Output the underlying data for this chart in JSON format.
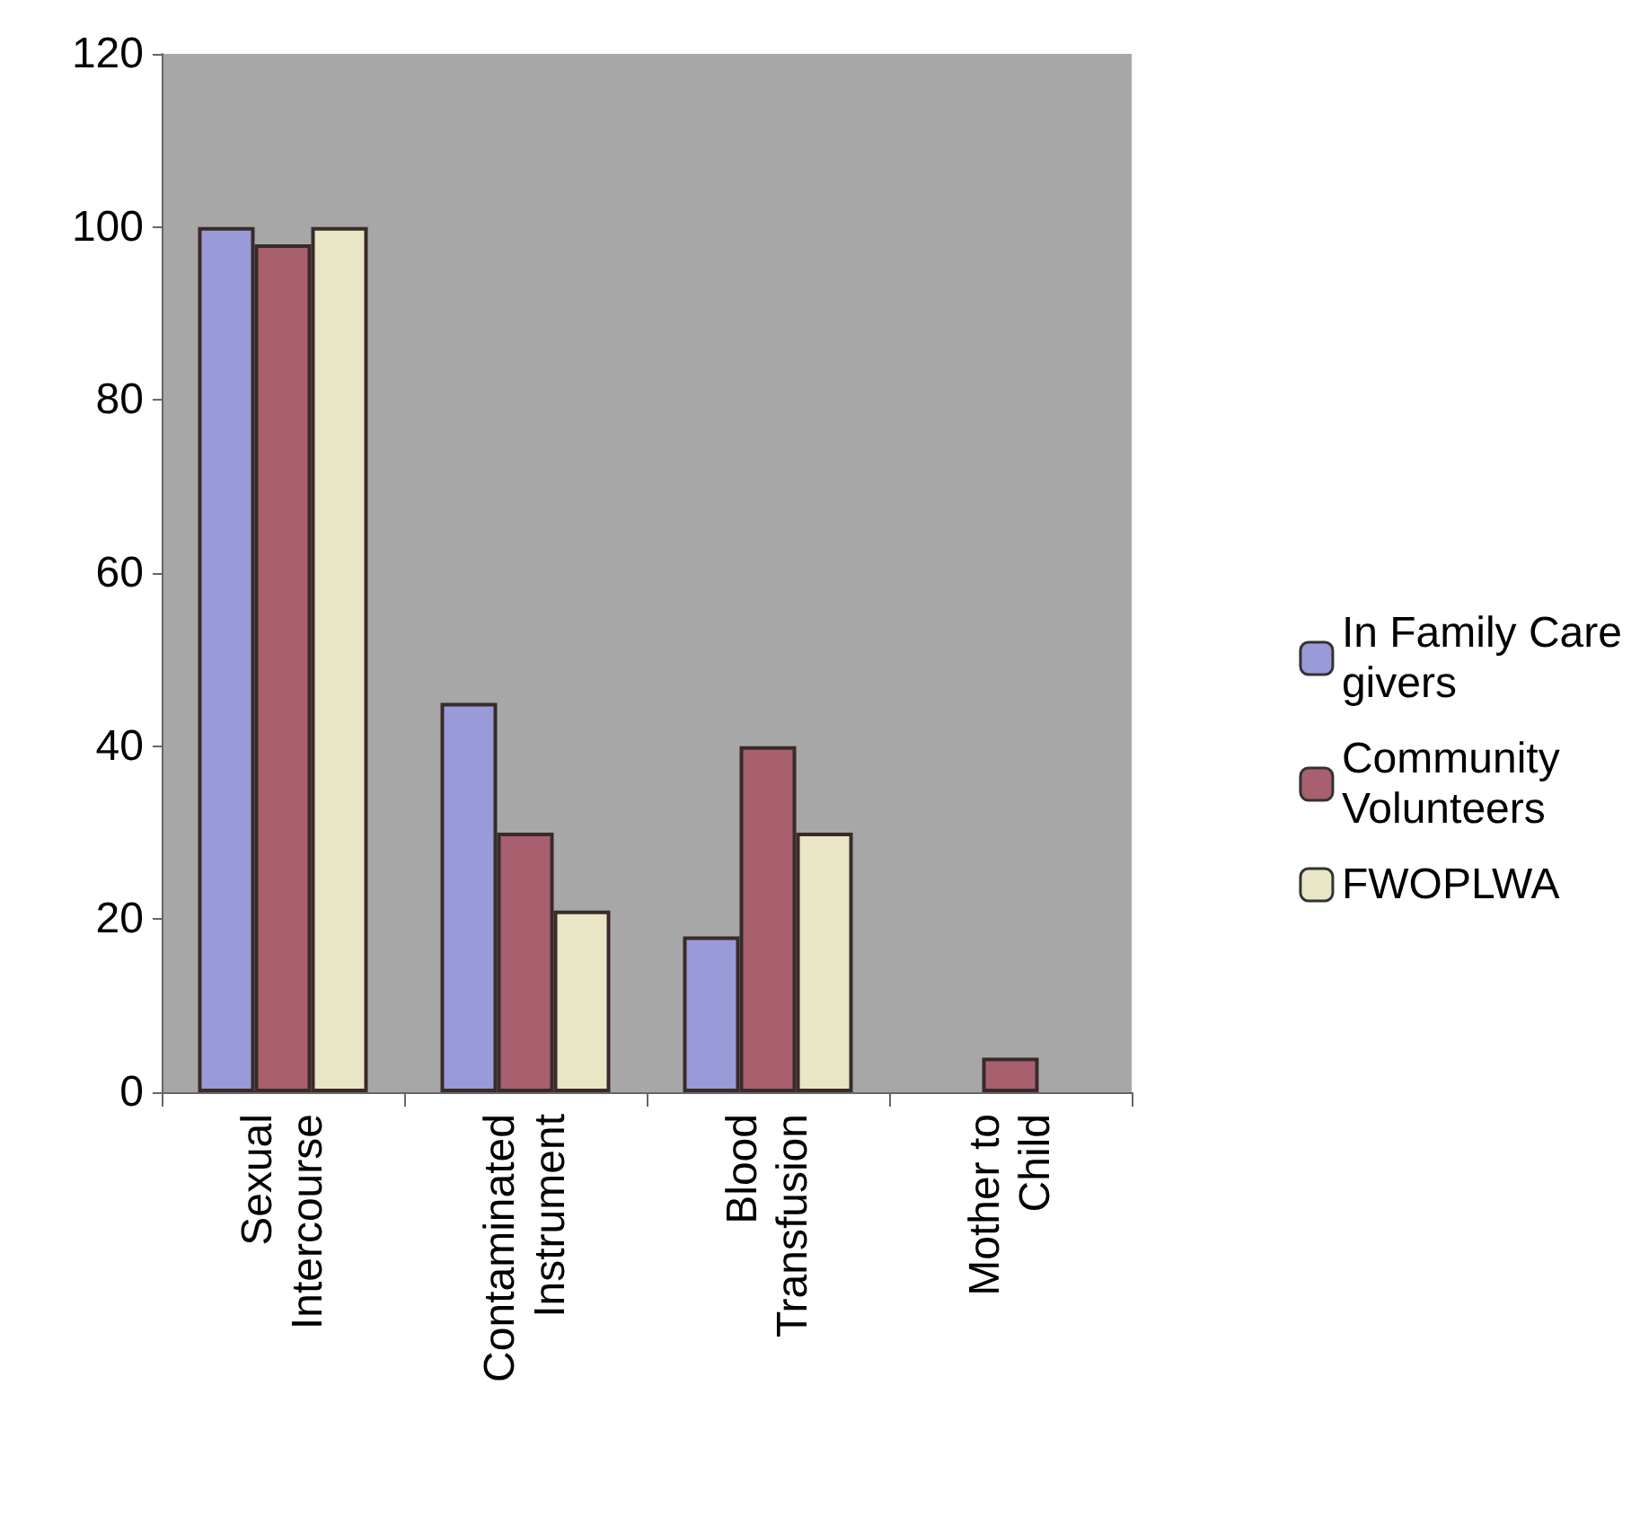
{
  "chart_data": {
    "type": "bar",
    "categories": [
      "Sexual Intercourse",
      "Contaminated Instrument",
      "Blood Transfusion",
      "Mother to Child"
    ],
    "series": [
      {
        "name": "In Family Care givers",
        "color": "#9a9ad8",
        "values": [
          100,
          45,
          18,
          null
        ]
      },
      {
        "name": "Community Volunteers",
        "color": "#a8606e",
        "values": [
          98,
          30,
          40,
          4
        ]
      },
      {
        "name": "FWOPLWA",
        "color": "#e8e6c4",
        "values": [
          100,
          21,
          30,
          null
        ]
      }
    ],
    "ylim": [
      0,
      120
    ],
    "yticks": [
      0,
      20,
      40,
      60,
      80,
      100,
      120
    ],
    "grid": false,
    "legend": "right"
  }
}
